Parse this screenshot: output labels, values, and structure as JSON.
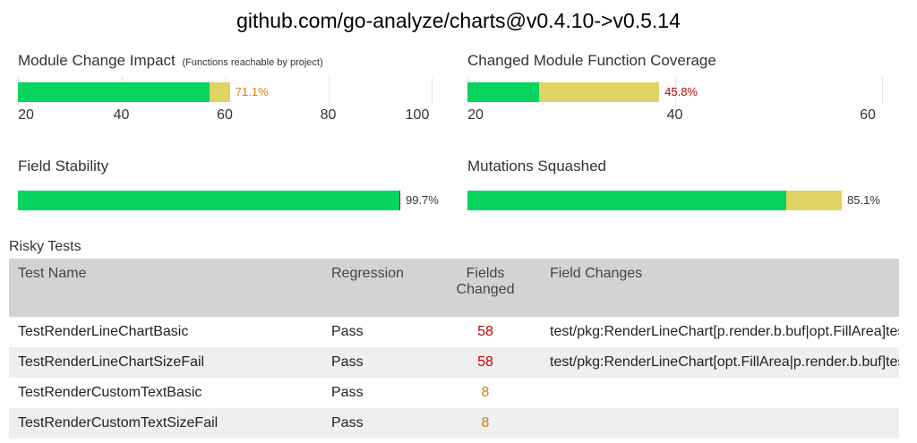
{
  "title": "github.com/go-analyze/charts@v0.4.10->v0.5.14",
  "colors": {
    "covered": "#06d45f",
    "partial": "#dfd364",
    "warn_text": "#e07b00",
    "bad_text": "#c00000",
    "pass_text": "#2e9e5b"
  },
  "panels": {
    "module_change_impact": {
      "title": "Module Change Impact",
      "subtitle": "(Functions reachable by project)",
      "percent_label": "71.1%",
      "axis_min": 20,
      "axis_max": 100,
      "ticks": [
        "20",
        "40",
        "60",
        "80",
        "100"
      ],
      "green_value": 57,
      "total_value": 61
    },
    "changed_module_function_coverage": {
      "title": "Changed Module Function Coverage",
      "percent_label": "45.8%",
      "axis_min": 20,
      "axis_max": 60,
      "ticks": [
        "20",
        "40",
        "60"
      ],
      "green_value": 26.9,
      "total_value": 38.5
    },
    "field_stability": {
      "title": "Field Stability",
      "percent_label": "99.7%",
      "fraction": 0.997
    },
    "mutations_squashed": {
      "title": "Mutations Squashed",
      "percent_label": "85.1%",
      "fraction": 0.851
    }
  },
  "risky_tests": {
    "title": "Risky Tests",
    "columns": [
      "Test Name",
      "Regression",
      "Fields Changed",
      "Field Changes"
    ],
    "rows": [
      {
        "name": "TestRenderLineChartBasic",
        "regression": "Pass",
        "fields_changed": "58",
        "level": "bad",
        "field_changes": "test/pkg:RenderLineChart[p.render.b.buf|opt.FillArea]test/pkg:Re.."
      },
      {
        "name": "TestRenderLineChartSizeFail",
        "regression": "Pass",
        "fields_changed": "58",
        "level": "bad",
        "field_changes": "test/pkg:RenderLineChart[opt.FillArea|p.render.b.buf]test/pkg:Re.."
      },
      {
        "name": "TestRenderCustomTextBasic",
        "regression": "Pass",
        "fields_changed": "8",
        "level": "warn",
        "field_changes": ""
      },
      {
        "name": "TestRenderCustomTextSizeFail",
        "regression": "Pass",
        "fields_changed": "8",
        "level": "warn",
        "field_changes": ""
      }
    ]
  }
}
